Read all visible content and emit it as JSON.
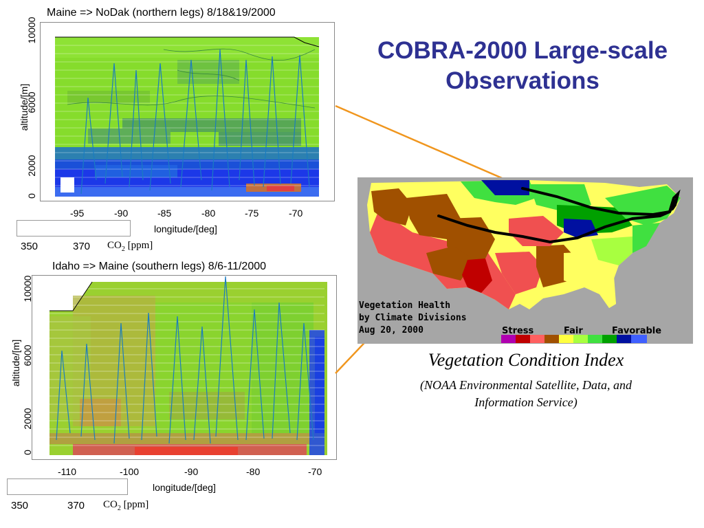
{
  "slide": {
    "title_line1": "COBRA-2000 Large-scale",
    "title_line2": "Observations"
  },
  "plot_top": {
    "title": "Maine => NoDak (northern legs) 8/18&19/2000",
    "ylabel": "altitude/[m]",
    "xlabel": "longitude/[deg]",
    "yticks": [
      "10000",
      "6000",
      "2000",
      "0"
    ],
    "xticks": [
      "-95",
      "-90",
      "-85",
      "-80",
      "-75",
      "-70"
    ],
    "colorbar": {
      "ticks": [
        "350",
        "370"
      ],
      "label": "CO",
      "label_sub": "2",
      "label_unit": "[ppm]"
    }
  },
  "plot_bottom": {
    "title": "Idaho => Maine (southern legs) 8/6-11/2000",
    "ylabel": "altitude/[m]",
    "xlabel": "longitude/[deg]",
    "yticks": [
      "10000",
      "6000",
      "2000",
      "0"
    ],
    "xticks": [
      "-110",
      "-100",
      "-90",
      "-80",
      "-70"
    ],
    "colorbar": {
      "ticks": [
        "350",
        "370"
      ],
      "label": "CO",
      "label_sub": "2",
      "label_unit": "[ppm]"
    }
  },
  "map": {
    "text_line1": "Vegetation Health",
    "text_line2": "by Climate Divisions",
    "text_line3": "Aug 20, 2000",
    "legend": {
      "stress": "Stress",
      "fair": "Fair",
      "favorable": "Favorable",
      "colors": [
        "#b000b0",
        "#c00000",
        "#ff6060",
        "#a05000",
        "#ffff40",
        "#a8ff40",
        "#40e040",
        "#00a000",
        "#0010a0",
        "#4060ff"
      ]
    },
    "colors": {
      "background": "#a6a6a6",
      "stress": "#f05050",
      "brown": "#a05000",
      "yellow": "#ffff60",
      "green": "#40e040",
      "darkgreen": "#00a000",
      "blue": "#0010a0"
    }
  },
  "caption": {
    "title": "Vegetation Condition Index",
    "line1": "(NOAA Environmental Satellite, Data, and",
    "line2": "Information Service)"
  },
  "colors": {
    "title": "#2e3192",
    "connector": "#f0961e",
    "flight_track": "#000000"
  }
}
